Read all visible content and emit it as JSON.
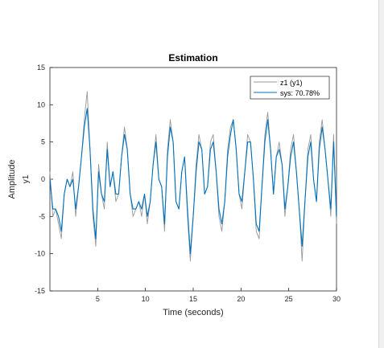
{
  "figure": {
    "background": "#ffffff"
  },
  "chart_data": {
    "type": "line",
    "title": "Estimation",
    "xlabel": "Time (seconds)",
    "ylabel_outer": "Amplitude",
    "ylabel_inner": "y1",
    "xlim": [
      0,
      30
    ],
    "ylim": [
      -15,
      15
    ],
    "xticks": [
      5,
      10,
      15,
      20,
      25,
      30
    ],
    "yticks": [
      -15,
      -10,
      -5,
      0,
      5,
      10,
      15
    ],
    "grid": false,
    "legend_position": "top-right",
    "colors": {
      "measured": "#999999",
      "model": "#0072bd"
    },
    "series": [
      {
        "name": "z1 (y1)",
        "x": [
          0,
          0.3,
          0.6,
          0.9,
          1.2,
          1.5,
          1.8,
          2.1,
          2.4,
          2.7,
          3.0,
          3.3,
          3.6,
          3.9,
          4.2,
          4.5,
          4.8,
          5.1,
          5.4,
          5.7,
          6.0,
          6.3,
          6.6,
          6.9,
          7.2,
          7.5,
          7.8,
          8.1,
          8.4,
          8.7,
          9.0,
          9.3,
          9.6,
          9.9,
          10.2,
          10.5,
          10.8,
          11.1,
          11.4,
          11.7,
          12.0,
          12.3,
          12.6,
          12.9,
          13.2,
          13.5,
          13.8,
          14.1,
          14.4,
          14.7,
          15.0,
          15.3,
          15.6,
          15.9,
          16.2,
          16.5,
          16.8,
          17.1,
          17.4,
          17.7,
          18.0,
          18.3,
          18.6,
          18.9,
          19.2,
          19.5,
          19.8,
          20.1,
          20.4,
          20.7,
          21.0,
          21.3,
          21.6,
          21.9,
          22.2,
          22.5,
          22.8,
          23.1,
          23.4,
          23.7,
          24.0,
          24.3,
          24.6,
          24.9,
          25.2,
          25.5,
          25.8,
          26.1,
          26.4,
          26.7,
          27.0,
          27.3,
          27.6,
          27.9,
          28.2,
          28.5,
          28.8,
          29.1,
          29.4,
          29.7,
          30.0
        ],
        "values": [
          1,
          -5,
          -4,
          -6,
          -8,
          -2,
          0,
          -1,
          1,
          -5,
          -1,
          3,
          8,
          11.8,
          4,
          -5,
          -9,
          2,
          -2,
          -4,
          5,
          -1,
          1,
          -3,
          -2,
          3,
          7,
          4,
          -2,
          -5,
          -4,
          -3,
          -5,
          -2,
          -6,
          -3,
          2,
          6,
          0,
          -1,
          -7,
          4,
          8,
          5,
          -3,
          -4,
          1,
          3,
          -5,
          -11,
          -5,
          2,
          6,
          4,
          -2,
          -1,
          5,
          6,
          1,
          -5,
          -7,
          -3,
          4,
          7,
          8,
          4,
          -2,
          -4,
          1,
          6,
          5,
          0,
          -7,
          -8,
          -1,
          6,
          9,
          4,
          -2,
          3,
          5,
          2,
          -5,
          -1,
          4,
          6,
          1,
          -4,
          -11,
          -3,
          4,
          6,
          0,
          -3,
          5,
          8,
          4,
          0,
          -5,
          6,
          -6
        ]
      },
      {
        "name": "sys: 70.78%",
        "x": [
          0,
          0.3,
          0.6,
          0.9,
          1.2,
          1.5,
          1.8,
          2.1,
          2.4,
          2.7,
          3.0,
          3.3,
          3.6,
          3.9,
          4.2,
          4.5,
          4.8,
          5.1,
          5.4,
          5.7,
          6.0,
          6.3,
          6.6,
          6.9,
          7.2,
          7.5,
          7.8,
          8.1,
          8.4,
          8.7,
          9.0,
          9.3,
          9.6,
          9.9,
          10.2,
          10.5,
          10.8,
          11.1,
          11.4,
          11.7,
          12.0,
          12.3,
          12.6,
          12.9,
          13.2,
          13.5,
          13.8,
          14.1,
          14.4,
          14.7,
          15.0,
          15.3,
          15.6,
          15.9,
          16.2,
          16.5,
          16.8,
          17.1,
          17.4,
          17.7,
          18.0,
          18.3,
          18.6,
          18.9,
          19.2,
          19.5,
          19.8,
          20.1,
          20.4,
          20.7,
          21.0,
          21.3,
          21.6,
          21.9,
          22.2,
          22.5,
          22.8,
          23.1,
          23.4,
          23.7,
          24.0,
          24.3,
          24.6,
          24.9,
          25.2,
          25.5,
          25.8,
          26.1,
          26.4,
          26.7,
          27.0,
          27.3,
          27.6,
          27.9,
          28.2,
          28.5,
          28.8,
          29.1,
          29.4,
          29.7,
          30.0
        ],
        "values": [
          0,
          -4,
          -4,
          -5,
          -7,
          -2,
          0,
          -1,
          0,
          -4,
          -1,
          3,
          7,
          9.5,
          4,
          -4,
          -8,
          1,
          -2,
          -3,
          4,
          -1,
          1,
          -2,
          -2,
          3,
          6,
          4,
          -2,
          -4,
          -4,
          -3,
          -4,
          -2,
          -5,
          -3,
          2,
          5,
          0,
          -1,
          -6,
          3,
          7,
          5,
          -3,
          -4,
          1,
          3,
          -4,
          -10,
          -5,
          1,
          5,
          4,
          -2,
          -1,
          4,
          5,
          1,
          -4,
          -6,
          -3,
          3,
          6,
          8,
          4,
          -2,
          -3,
          1,
          5,
          5,
          0,
          -6,
          -7,
          -1,
          5,
          8,
          4,
          -2,
          3,
          4,
          2,
          -4,
          -1,
          3,
          5,
          1,
          -4,
          -9,
          -3,
          3,
          5,
          0,
          -3,
          4,
          7,
          4,
          0,
          -4,
          5,
          -5
        ]
      }
    ]
  }
}
